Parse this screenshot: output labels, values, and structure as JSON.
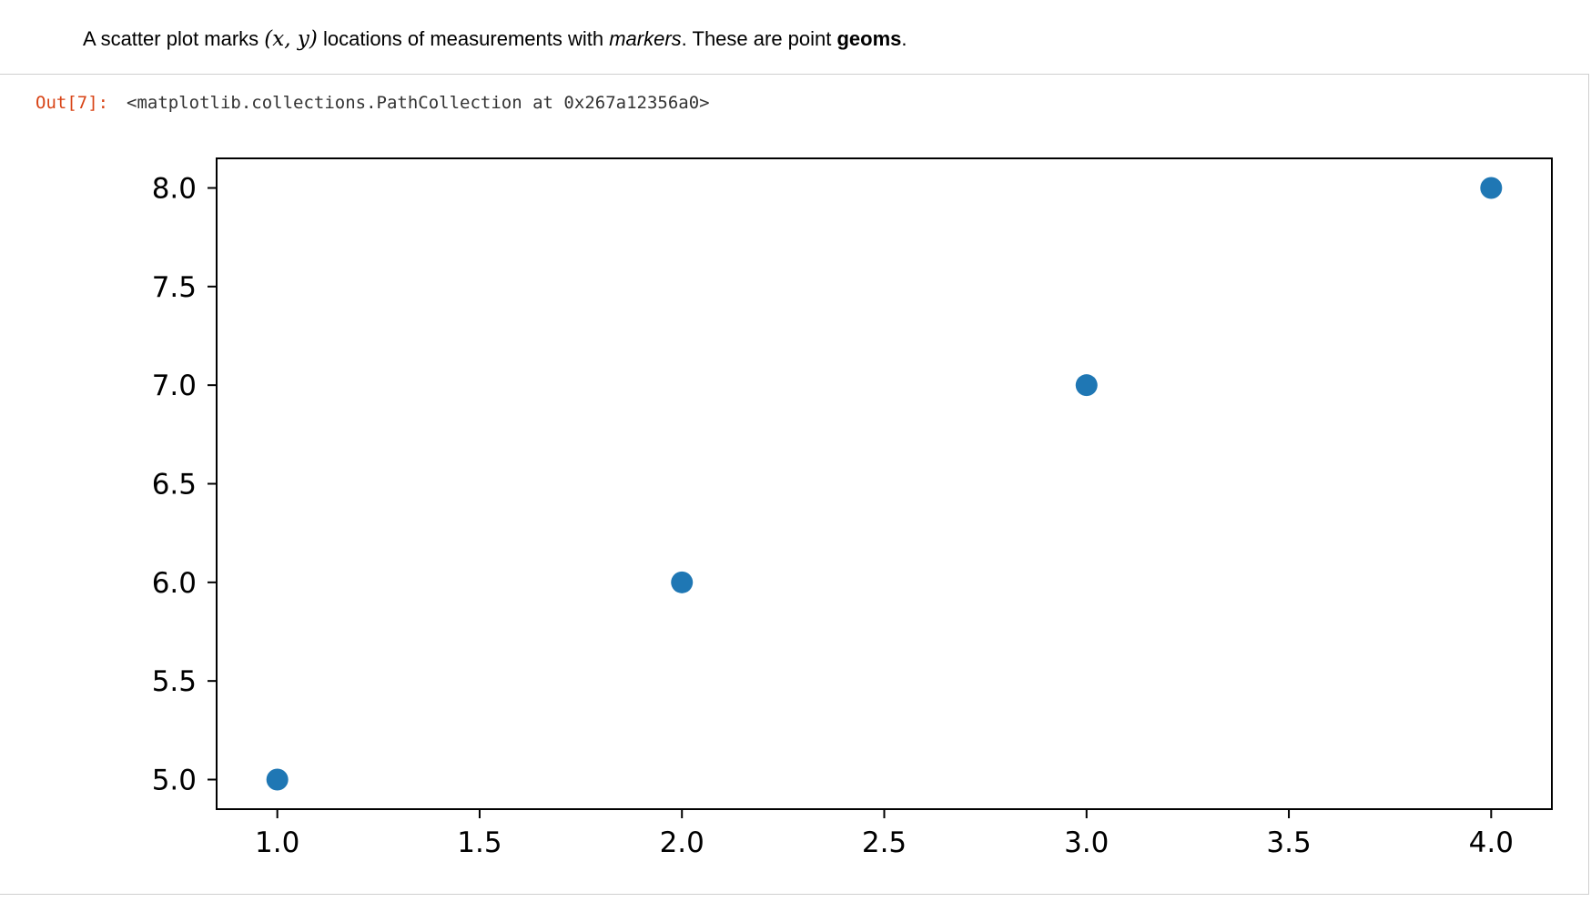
{
  "markdown": {
    "prefix": "A scatter plot marks ",
    "math": "(x, y)",
    "middle": " locations of measurements with ",
    "emph": "markers",
    "middle2": ". These are point ",
    "strong": "geoms",
    "suffix": "."
  },
  "output": {
    "prompt": "Out[7]:",
    "text": "<matplotlib.collections.PathCollection at 0x267a12356a0>"
  },
  "colors": {
    "marker": "#1f77b4",
    "prompt": "#d84315"
  },
  "chart_data": {
    "type": "scatter",
    "title": "",
    "xlabel": "",
    "ylabel": "",
    "x": [
      1.0,
      2.0,
      3.0,
      4.0
    ],
    "y": [
      5.0,
      6.0,
      7.0,
      8.0
    ],
    "xlim": [
      0.85,
      4.15
    ],
    "ylim": [
      4.85,
      8.15
    ],
    "xticks": [
      1.0,
      1.5,
      2.0,
      2.5,
      3.0,
      3.5,
      4.0
    ],
    "xtick_labels": [
      "1.0",
      "1.5",
      "2.0",
      "2.5",
      "3.0",
      "3.5",
      "4.0"
    ],
    "yticks": [
      5.0,
      5.5,
      6.0,
      6.5,
      7.0,
      7.5,
      8.0
    ],
    "ytick_labels": [
      "5.0",
      "5.5",
      "6.0",
      "6.5",
      "7.0",
      "7.5",
      "8.0"
    ],
    "grid": false,
    "legend": "none"
  }
}
